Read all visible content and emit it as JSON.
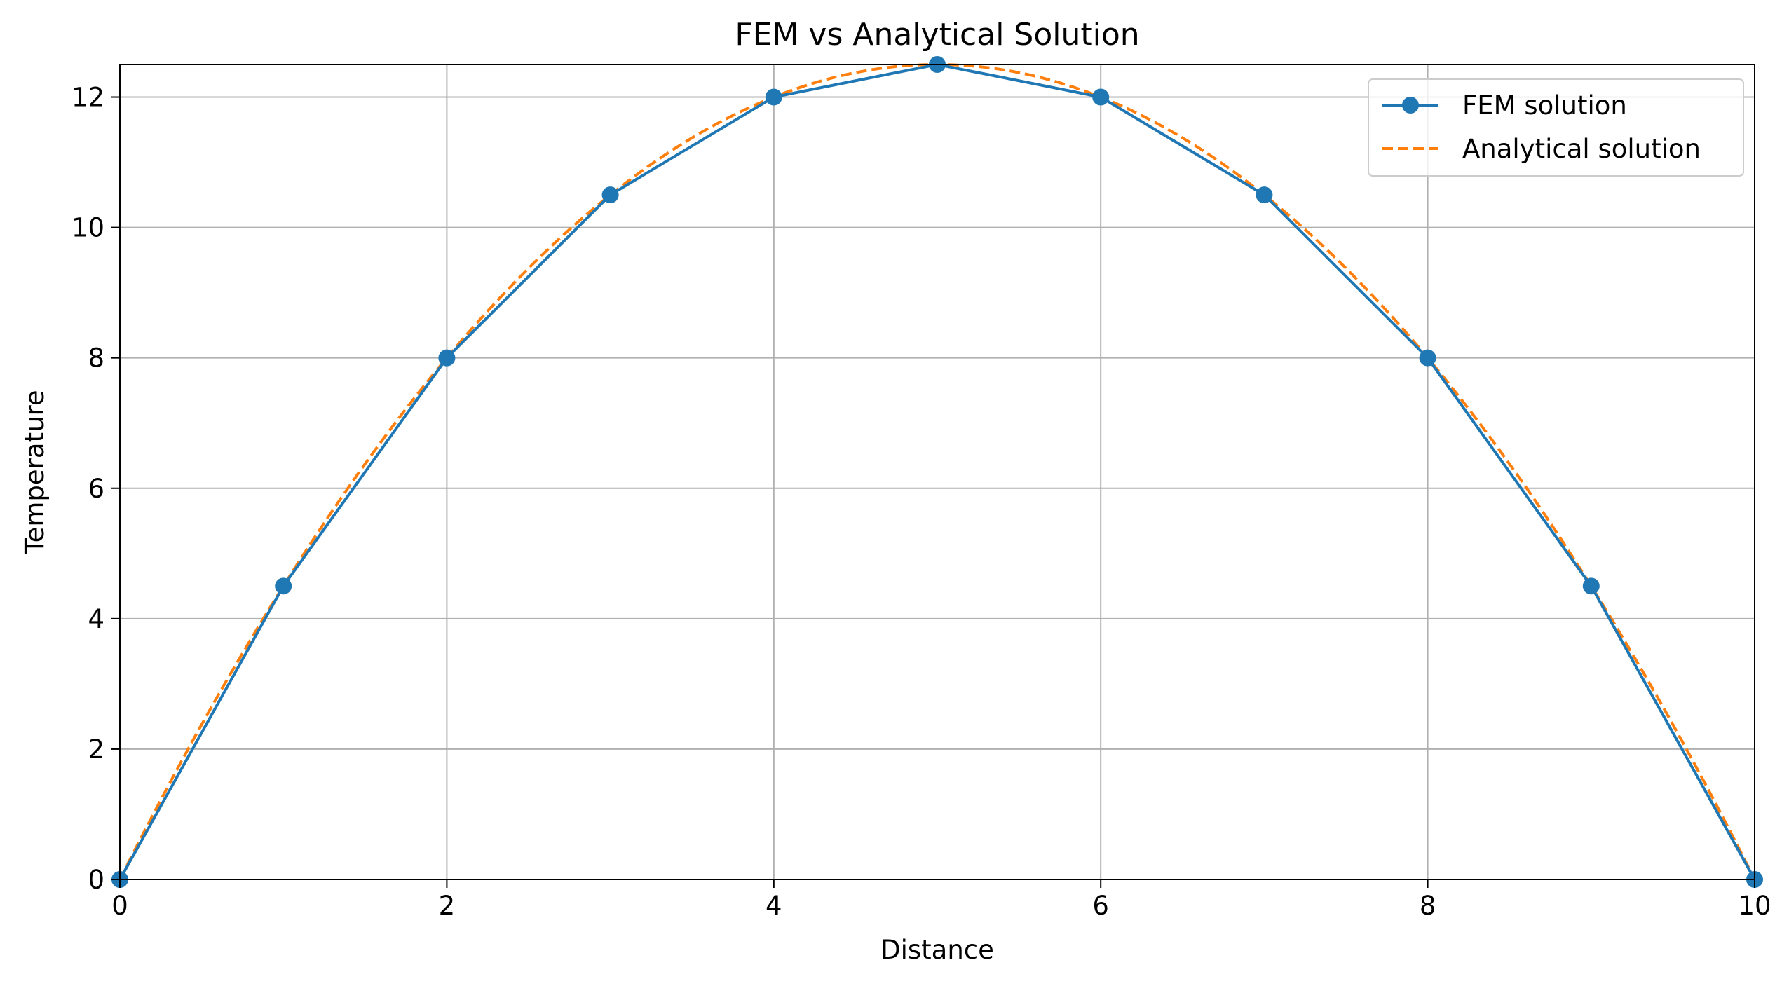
{
  "chart_data": {
    "type": "line",
    "title": "FEM vs Analytical Solution",
    "xlabel": "Distance",
    "ylabel": "Temperature",
    "xlim": [
      0,
      10
    ],
    "ylim": [
      0,
      12.5
    ],
    "x_ticks": [
      0,
      2,
      4,
      6,
      8,
      10
    ],
    "y_ticks": [
      0,
      2,
      4,
      6,
      8,
      10,
      12
    ],
    "x_tick_labels": [
      "0",
      "2",
      "4",
      "6",
      "8",
      "10"
    ],
    "y_tick_labels": [
      "0",
      "2",
      "4",
      "6",
      "8",
      "10",
      "12"
    ],
    "grid": true,
    "legend_position": "top-right",
    "series": [
      {
        "name": "FEM solution",
        "style": "solid line with circle markers",
        "color": "#1f77b4",
        "x": [
          0,
          1,
          2,
          3,
          4,
          5,
          6,
          7,
          8,
          9,
          10
        ],
        "values": [
          0,
          4.5,
          8,
          10.5,
          12,
          12.5,
          12,
          10.5,
          8,
          4.5,
          0
        ]
      },
      {
        "name": "Analytical solution",
        "style": "dashed line",
        "color": "#ff7f0e",
        "function": "0.5*x*(10-x)",
        "x": [
          0,
          1,
          2,
          3,
          4,
          5,
          6,
          7,
          8,
          9,
          10
        ],
        "values": [
          0,
          4.5,
          8,
          10.5,
          12,
          12.5,
          12,
          10.5,
          8,
          4.5,
          0
        ]
      }
    ]
  }
}
